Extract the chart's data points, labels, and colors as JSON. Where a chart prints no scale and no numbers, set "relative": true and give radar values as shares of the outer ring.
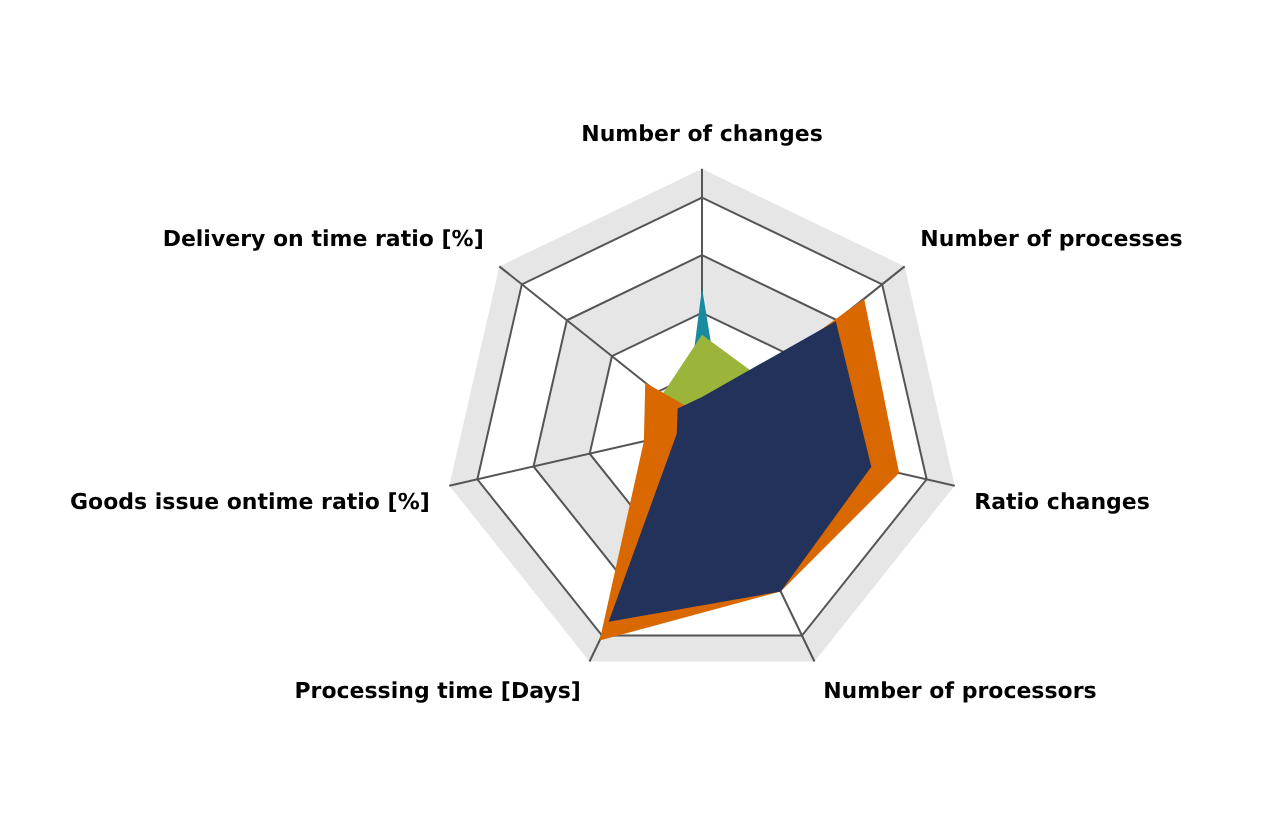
{
  "chart_data": {
    "type": "radar",
    "relative": true,
    "categories": [
      "Number of changes",
      "Number of processes",
      "Ratio changes",
      "Number of processors",
      "Processing time [Days]",
      "Goods issue ontime ratio [%]",
      "Delivery on time ratio [%]"
    ],
    "series": [
      {
        "color": "#1a8aa0",
        "values": [
          0.54,
          0.1,
          0.05,
          0.05,
          0.05,
          0.05,
          0.08
        ]
      },
      {
        "color": "#9bb53a",
        "values": [
          0.36,
          0.3,
          0.1,
          0.1,
          0.1,
          0.1,
          0.2
        ]
      },
      {
        "color": "#d96800",
        "values": [
          0.05,
          0.8,
          0.78,
          0.7,
          0.91,
          0.23,
          0.28
        ]
      },
      {
        "color": "#22325a",
        "values": [
          0.12,
          0.66,
          0.67,
          0.7,
          0.83,
          0.1,
          0.12
        ]
      }
    ],
    "legend": false
  }
}
